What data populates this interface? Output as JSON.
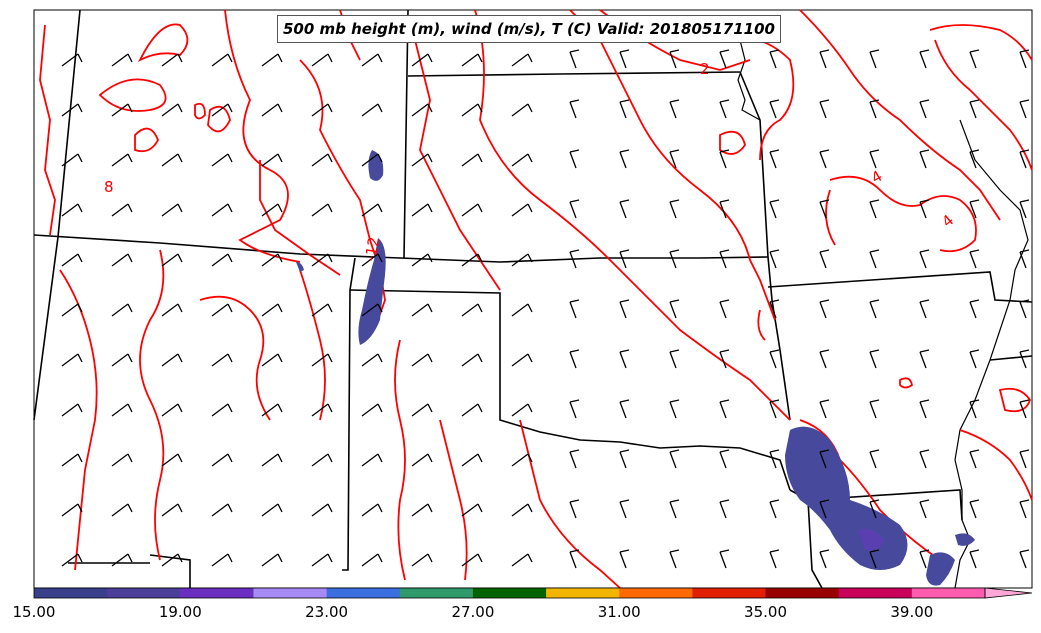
{
  "title": "500 mb height (m), wind (m/s), T (C) Valid: 201805171100",
  "colorbar": {
    "colors": [
      "#3a3f8c",
      "#4b3f9a",
      "#6a2fc0",
      "#a78bf5",
      "#3b6fe0",
      "#2e9a6a",
      "#006400",
      "#f2b600",
      "#ff6a00",
      "#e02000",
      "#990000",
      "#c8005a",
      "#ff5cb0",
      "#ffa6d8"
    ],
    "tick_labels": [
      "15.00",
      "19.00",
      "23.00",
      "27.00",
      "31.00",
      "35.00",
      "39.00"
    ]
  },
  "contour_labels": [
    "8",
    "2",
    "4",
    "4",
    "-12"
  ],
  "colors": {
    "temperature_contour": "#ff0000",
    "borders": "#000000",
    "wind_fill": "#474a9c"
  }
}
